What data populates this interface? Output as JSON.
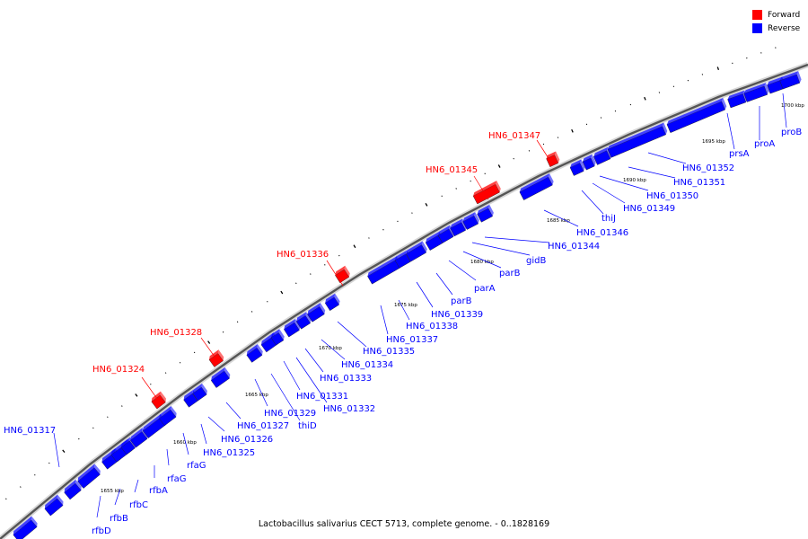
{
  "legend": {
    "forward_label": "Forward",
    "reverse_label": "Reverse",
    "forward_color": "#ff0000",
    "reverse_color": "#0000ff"
  },
  "colors": {
    "forward": "#ff0000",
    "reverse": "#0000ff",
    "backbone": "#555555"
  },
  "caption": "Lactobacillus salivarius CECT 5713, complete genome. - 0..1828169",
  "kbp_ticks": [
    "1655 kbp",
    "1660 kbp",
    "1665 kbp",
    "1670 kbp",
    "1675 kbp",
    "1680 kbp",
    "1685 kbp",
    "1690 kbp",
    "1695 kbp",
    "1700 kbp"
  ],
  "forward_genes": [
    "HN6_01324",
    "HN6_01328",
    "HN6_01336",
    "HN6_01345",
    "HN6_01347"
  ],
  "reverse_genes": [
    "HN6_01317",
    "rfbD",
    "rfbB",
    "rfbC",
    "rfbA",
    "rfaG",
    "rfaG",
    "HN6_01325",
    "HN6_01326",
    "HN6_01327",
    "HN6_01329",
    "thiD",
    "HN6_01331",
    "HN6_01332",
    "HN6_01333",
    "HN6_01334",
    "HN6_01335",
    "HN6_01337",
    "HN6_01338",
    "HN6_01339",
    "parB",
    "parA",
    "parB",
    "gidB",
    "HN6_01344",
    "HN6_01346",
    "thiJ",
    "HN6_01349",
    "HN6_01350",
    "HN6_01351",
    "HN6_01352",
    "prsA",
    "proA",
    "proB"
  ]
}
